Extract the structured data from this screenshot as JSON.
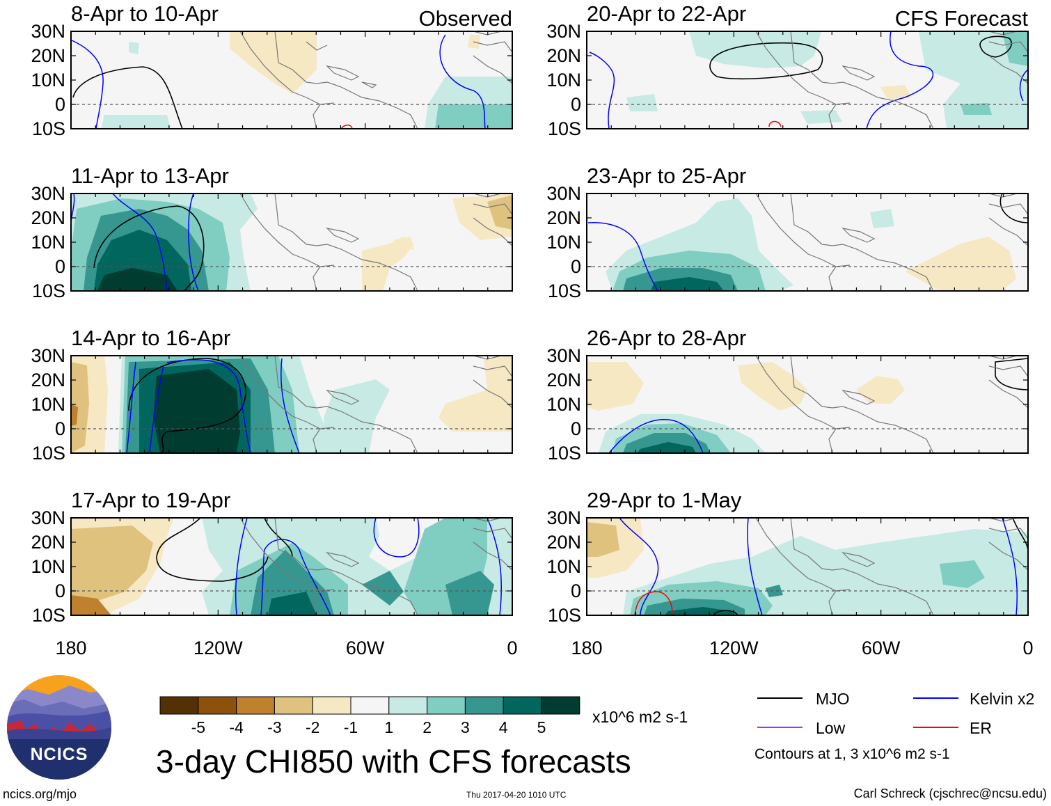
{
  "title": "3-day CHI850 with CFS forecasts",
  "column_labels": {
    "observed": "Observed",
    "forecast": "CFS Forecast"
  },
  "lat_ticks": [
    "30N",
    "20N",
    "10N",
    "0",
    "10S"
  ],
  "lon_ticks": [
    "180",
    "120W",
    "60W",
    "0"
  ],
  "panels": [
    {
      "label": "8-Apr to 10-Apr",
      "source": "observed"
    },
    {
      "label": "11-Apr to 13-Apr",
      "source": "observed"
    },
    {
      "label": "14-Apr to 16-Apr",
      "source": "observed"
    },
    {
      "label": "17-Apr to 19-Apr",
      "source": "observed"
    },
    {
      "label": "20-Apr to 22-Apr",
      "source": "forecast"
    },
    {
      "label": "23-Apr to 25-Apr",
      "source": "forecast"
    },
    {
      "label": "26-Apr to 28-Apr",
      "source": "forecast"
    },
    {
      "label": "29-Apr to 1-May",
      "source": "forecast"
    }
  ],
  "colorbar": {
    "tick_labels": [
      "-5",
      "-4",
      "-3",
      "-2",
      "-1",
      "1",
      "2",
      "3",
      "4",
      "5"
    ],
    "colors": [
      "#543005",
      "#8c510a",
      "#bf812d",
      "#dfc27d",
      "#f6e8c3",
      "#f5f5f5",
      "#c7eae5",
      "#80cdc1",
      "#35978f",
      "#01665e",
      "#003c30"
    ],
    "units": "x10^6 m2 s-1"
  },
  "legend": {
    "items": [
      {
        "label": "MJO",
        "color": "#000000"
      },
      {
        "label": "Kelvin x2",
        "color": "#0000ff"
      },
      {
        "label": "Low",
        "color": "#9933ff"
      },
      {
        "label": "ER",
        "color": "#ff0000"
      }
    ],
    "note": "Contours at 1, 3 x10^6 m2 s-1"
  },
  "logo": {
    "text": "NCICS"
  },
  "footer": {
    "url": "ncics.org/mjo",
    "timestamp": "Thu 2017-04-20 1010 UTC",
    "credit": "Carl Schreck (cjschrec@ncsu.edu)"
  }
}
